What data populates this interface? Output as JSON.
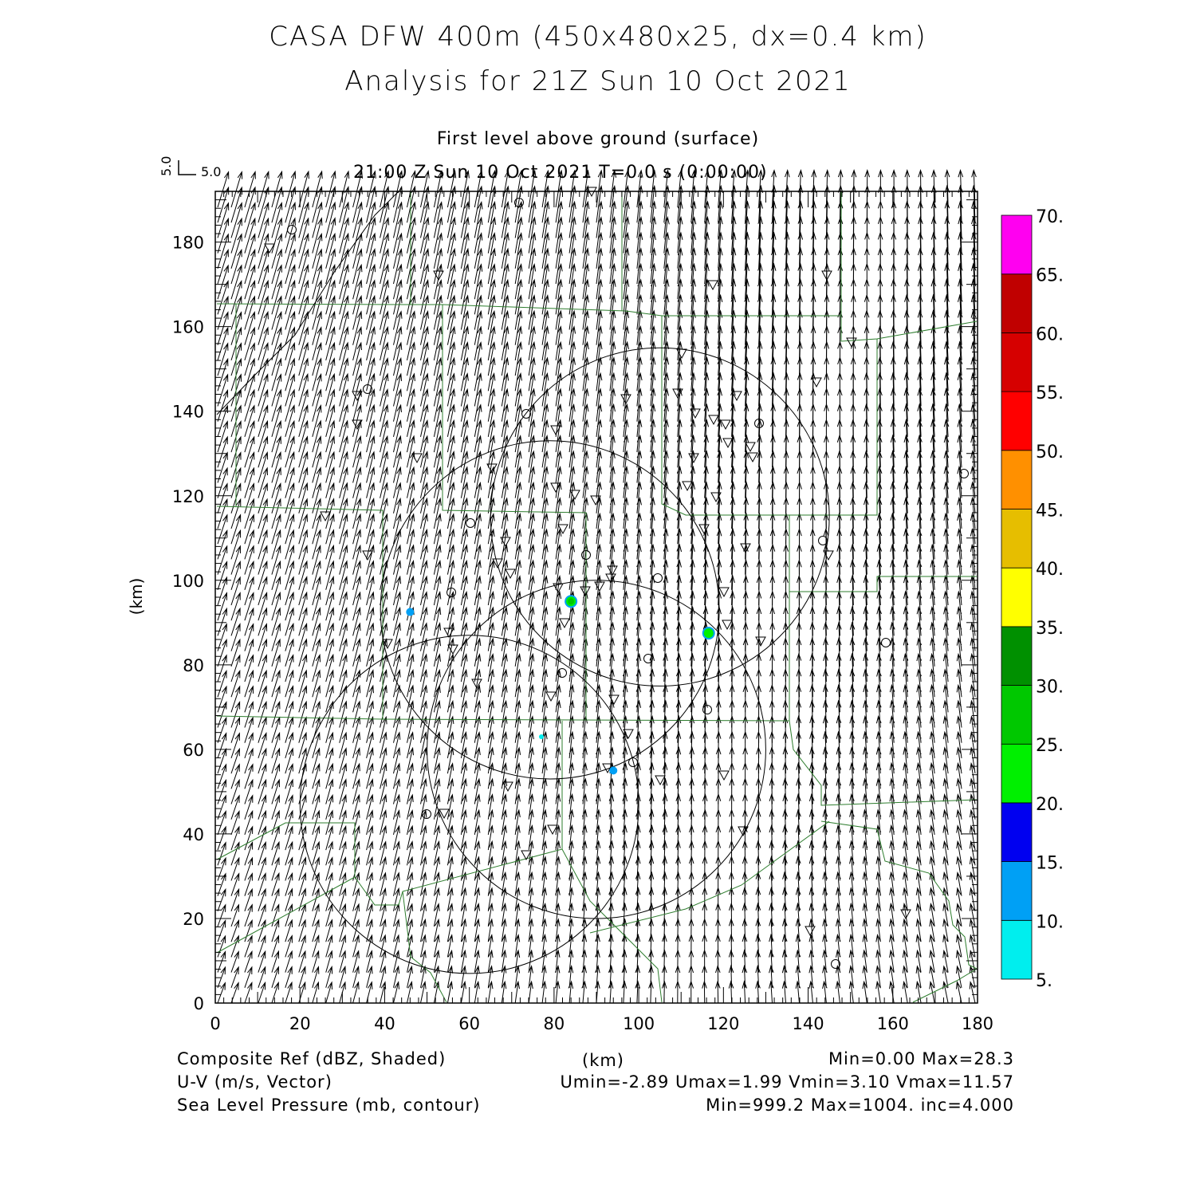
{
  "title_line1": "CASA DFW 400m (450x480x25, dx=0.4 km)",
  "title_line2": "Analysis for 21Z Sun 10 Oct 2021",
  "subtitle_level": "First level above ground (surface)",
  "subtitle_time": "21:00 Z Sun 10 Oct 2021   T=0.0 s (0:00:00)",
  "vector_key": {
    "u_label": "5.0",
    "v_label": "5.0"
  },
  "footer": {
    "left1": "Composite Ref (dBZ, Shaded)",
    "left2": "U-V (m/s, Vector)",
    "left3": "Sea Level Pressure (mb, contour)",
    "center": "(km)",
    "right1": "Min=0.00 Max=28.3",
    "right2": "Umin=-2.89 Umax=1.99 Vmin=3.10 Vmax=11.57",
    "right3": "Min=999.2 Max=1004. inc=4.000"
  },
  "chart_data": {
    "type": "heatmap",
    "title": "CASA DFW 400m (450x480x25, dx=0.4 km)",
    "subtitle": "Analysis for 21Z Sun 10 Oct 2021",
    "xlabel": "",
    "ylabel": "(km)",
    "xlim": [
      0,
      180
    ],
    "ylim": [
      0,
      192
    ],
    "x_ticks": [
      0,
      20,
      40,
      60,
      80,
      100,
      120,
      140,
      160,
      180
    ],
    "y_ticks": [
      0,
      20,
      40,
      60,
      80,
      100,
      120,
      140,
      160,
      180
    ],
    "colorbar": {
      "levels": [
        "5.",
        "10.",
        "15.",
        "20.",
        "25.",
        "30.",
        "35.",
        "40.",
        "45.",
        "50.",
        "55.",
        "60.",
        "65.",
        "70."
      ],
      "colors": [
        "#00eeee",
        "#00a0f5",
        "#0000f0",
        "#00f000",
        "#00c800",
        "#009000",
        "#ffff00",
        "#e6be00",
        "#ff9000",
        "#ff0000",
        "#d60000",
        "#c00000",
        "#ff00f0"
      ]
    },
    "reflectivity_echoes": [
      {
        "x": 84,
        "y": 95,
        "dbz": 28
      },
      {
        "x": 116.5,
        "y": 87.5,
        "dbz": 22
      },
      {
        "x": 46,
        "y": 92.5,
        "dbz": 10
      },
      {
        "x": 94,
        "y": 55,
        "dbz": 10
      },
      {
        "x": 77,
        "y": 63,
        "dbz": 7
      }
    ],
    "radar_range_rings": [
      {
        "cx": 79,
        "cy": 93,
        "r": 40
      },
      {
        "cx": 105,
        "cy": 115,
        "r": 40
      },
      {
        "cx": 90,
        "cy": 60,
        "r": 40
      },
      {
        "cx": 60,
        "cy": 47,
        "r": 40
      }
    ],
    "wind_field": {
      "u_min": -2.89,
      "u_max": 1.99,
      "v_min": 3.1,
      "v_max": 11.57
    }
  }
}
